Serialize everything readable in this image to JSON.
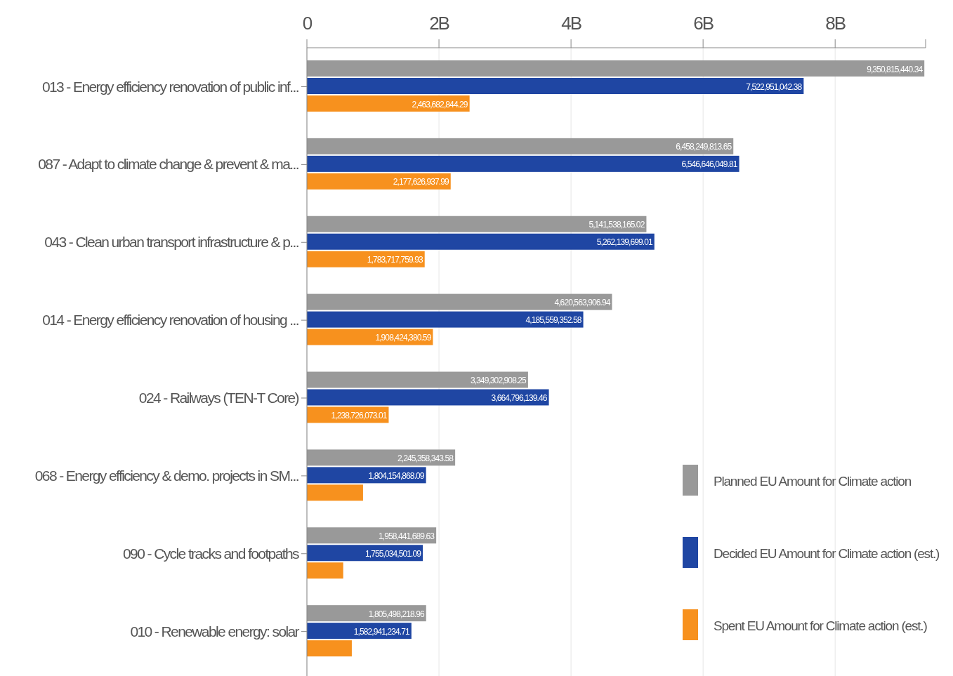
{
  "chart_data": {
    "type": "bar",
    "orientation": "horizontal",
    "categories": [
      "013 - Energy efficiency renovation of public inf...",
      "087 - Adapt to climate change & prevent & ma...",
      "043 - Clean urban transport infrastructure & p...",
      "014 - Energy efficiency renovation of housing ...",
      "024 - Railways (TEN-T Core)",
      "068 - Energy efficiency & demo. projects in SM...",
      "090 - Cycle tracks and footpaths",
      "010 - Renewable energy: solar"
    ],
    "series": [
      {
        "name": "Planned EU Amount for Climate action",
        "color": "#999999",
        "values": [
          9350815440.34,
          6458249813.65,
          5141538165.02,
          4620563906.94,
          3349302908.25,
          2245358343.58,
          1958441689.63,
          1805498218.96
        ],
        "value_labels": [
          "9,350,815,440.34",
          "6,458,249,813.65",
          "5,141,538,165.02",
          "4,620,563,906.94",
          "3,349,302,908.25",
          "2,245,358,343.58",
          "1,958,441,689.63",
          "1,805,498,218.96"
        ]
      },
      {
        "name": "Decided EU Amount for Climate action (est.)",
        "color": "#1f46a3",
        "values": [
          7522951042.38,
          6546646049.81,
          5262139699.01,
          4185559352.58,
          3664796139.46,
          1804154868.09,
          1755034501.09,
          1582941234.71
        ],
        "value_labels": [
          "7,522,951,042.38",
          "6,546,646,049.81",
          "5,262,139,699.01",
          "4,185,559,352.58",
          "3,664,796,139.46",
          "1,804,154,868.09",
          "1,755,034,501.09",
          "1,582,941,234.71"
        ]
      },
      {
        "name": "Spent EU Amount for Climate action (est.)",
        "color": "#f7911e",
        "values": [
          2463682844.29,
          2177626937.99,
          1783717759.93,
          1908424380.59,
          1238726073.01,
          850000000,
          550000000,
          680000000
        ],
        "value_labels": [
          "2,463,682,844.29",
          "2,177,626,937.99",
          "1,783,717,759.93",
          "1,908,424,380.59",
          "1,238,726,073.01",
          null,
          null,
          null
        ]
      }
    ],
    "xlim": [
      0,
      9370000000
    ],
    "xticks": [
      0,
      {
        "value": 2000000000,
        "label": "2B"
      },
      {
        "value": 4000000000,
        "label": "4B"
      },
      {
        "value": 6000000000,
        "label": "6B"
      },
      {
        "value": 8000000000,
        "label": "8B"
      }
    ],
    "grid": "x",
    "legend": "bottom right"
  }
}
